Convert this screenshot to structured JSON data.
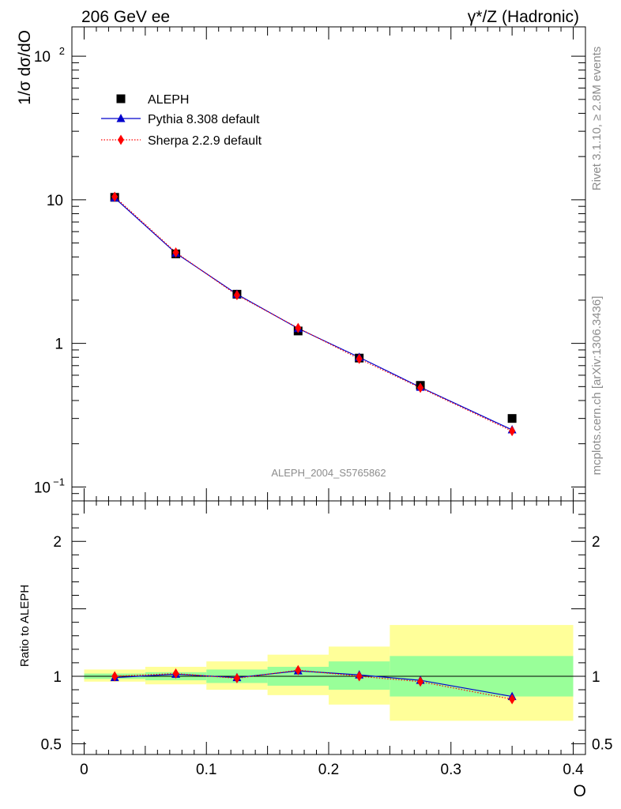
{
  "header": {
    "left": "206 GeV ee",
    "right": "γ*/Z (Hadronic)"
  },
  "side_texts": {
    "rivet": "Rivet 3.1.10, ≥ 2.8M events",
    "source": "mcplots.cern.ch [arXiv:1306.3436]"
  },
  "watermark": "ALEPH_2004_S5765862",
  "chart_data": [
    {
      "type": "scatter",
      "panel": "main",
      "ylabel": "1/σ  dσ/dO",
      "yscale": "log",
      "ylim": [
        0.08,
        160
      ],
      "xlim": [
        -0.01,
        0.41
      ],
      "y_tick_labels": [
        {
          "value": 0.1,
          "label": "10",
          "sup": "−1"
        },
        {
          "value": 1,
          "label": "1",
          "sup": ""
        },
        {
          "value": 10,
          "label": "10",
          "sup": ""
        },
        {
          "value": 100,
          "label": "10",
          "sup": "2"
        }
      ],
      "x": [
        0.025,
        0.075,
        0.125,
        0.175,
        0.225,
        0.275,
        0.35
      ],
      "series": [
        {
          "name": "ALEPH",
          "marker": "square",
          "color": "#000000",
          "values": [
            10.4,
            4.2,
            2.2,
            1.22,
            0.79,
            0.51,
            0.3
          ]
        },
        {
          "name": "Pythia 8.308 default",
          "marker": "triangle",
          "line": "solid",
          "color": "#0000cc",
          "values": [
            10.3,
            4.25,
            2.2,
            1.27,
            0.8,
            0.495,
            0.25
          ]
        },
        {
          "name": "Sherpa 2.2.9 default",
          "marker": "diamond",
          "line": "dotted",
          "color": "#ff0000",
          "values": [
            10.5,
            4.3,
            2.17,
            1.28,
            0.78,
            0.49,
            0.245
          ]
        }
      ],
      "legend": "top-left"
    },
    {
      "type": "line",
      "panel": "ratio",
      "ylabel": "Ratio to ALEPH",
      "ylim": [
        0.42,
        2.3
      ],
      "xlim": [
        -0.01,
        0.41
      ],
      "xlabel": "O",
      "x_ticks": [
        0,
        0.1,
        0.2,
        0.3,
        0.4
      ],
      "x_tick_labels": [
        "0",
        "0.1",
        "0.2",
        "0.3",
        "0.4"
      ],
      "y_ticks": [
        0.5,
        1,
        2
      ],
      "y_tick_labels": [
        "0.5",
        "1",
        "2"
      ],
      "bands": {
        "edges": [
          0,
          0.05,
          0.1,
          0.15,
          0.2,
          0.25,
          0.4
        ],
        "inner_low": [
          0.98,
          0.97,
          0.95,
          0.93,
          0.9,
          0.85
        ],
        "inner_high": [
          1.02,
          1.03,
          1.05,
          1.07,
          1.11,
          1.15
        ],
        "outer_low": [
          0.96,
          0.94,
          0.9,
          0.86,
          0.79,
          0.67
        ],
        "outer_high": [
          1.05,
          1.07,
          1.11,
          1.16,
          1.22,
          1.38
        ],
        "inner_color": "#99ff99",
        "outer_color": "#ffff99"
      },
      "x": [
        0.025,
        0.075,
        0.125,
        0.175,
        0.225,
        0.275,
        0.35
      ],
      "series": [
        {
          "name": "Pythia 8.308 default",
          "color": "#0000cc",
          "values": [
            0.99,
            1.015,
            0.99,
            1.04,
            1.01,
            0.97,
            0.85
          ]
        },
        {
          "name": "Sherpa 2.2.9 default",
          "color": "#ff0000",
          "values": [
            1.0,
            1.02,
            0.985,
            1.045,
            1.0,
            0.96,
            0.83
          ]
        }
      ]
    }
  ]
}
